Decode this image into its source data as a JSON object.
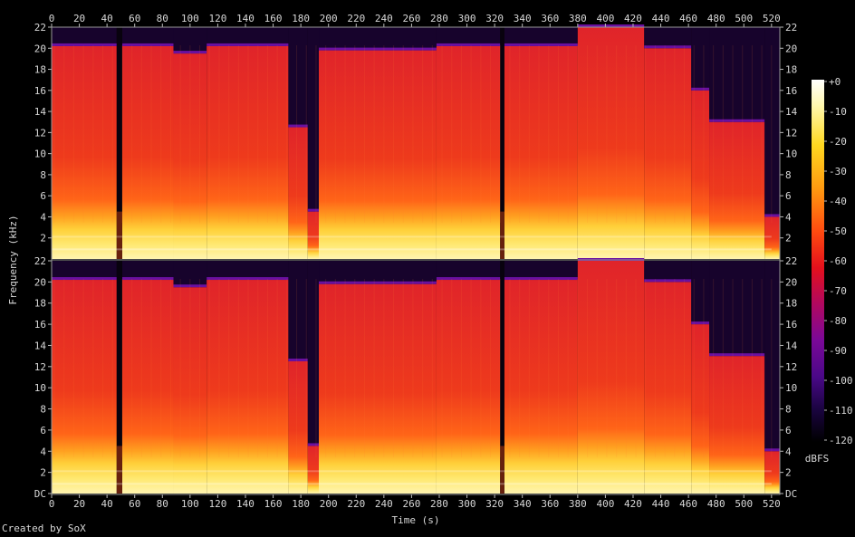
{
  "chart_data": {
    "type": "heatmap",
    "xlabel": "Time (s)",
    "ylabel": "Frequency (kHz)",
    "x_ticks": [
      0,
      20,
      40,
      60,
      80,
      100,
      120,
      140,
      160,
      180,
      200,
      220,
      240,
      260,
      280,
      300,
      320,
      340,
      360,
      380,
      400,
      420,
      440,
      460,
      480,
      500,
      520
    ],
    "xlim": [
      0,
      526
    ],
    "ylim": [
      0,
      22
    ],
    "channels": [
      {
        "y_tick_labels": [
          "22",
          "20",
          "18",
          "16",
          "14",
          "12",
          "10",
          "8",
          "6",
          "4",
          "2"
        ]
      },
      {
        "y_tick_labels": [
          "22",
          "20",
          "18",
          "16",
          "14",
          "12",
          "10",
          "8",
          "6",
          "4",
          "2",
          "DC"
        ]
      }
    ],
    "colorbar": {
      "label": "dBFS",
      "tick_labels": [
        "+0",
        "-10",
        "-20",
        "-30",
        "-40",
        "-50",
        "-60",
        "-70",
        "-80",
        "-90",
        "-100",
        "-110",
        "-120"
      ],
      "range": [
        -120,
        0
      ]
    },
    "silence_gaps_seconds": [
      [
        47,
        51
      ],
      [
        324,
        327
      ]
    ],
    "segments": [
      {
        "start": 0,
        "end": 47,
        "cutoff_khz": 20.2
      },
      {
        "start": 51,
        "end": 88,
        "cutoff_khz": 20.2
      },
      {
        "start": 88,
        "end": 112,
        "cutoff_khz": 19.5
      },
      {
        "start": 112,
        "end": 171,
        "cutoff_khz": 20.2
      },
      {
        "start": 171,
        "end": 185,
        "cutoff_khz": 12.5
      },
      {
        "start": 185,
        "end": 193,
        "cutoff_khz": 4.5
      },
      {
        "start": 193,
        "end": 278,
        "cutoff_khz": 19.8
      },
      {
        "start": 278,
        "end": 324,
        "cutoff_khz": 20.2
      },
      {
        "start": 327,
        "end": 380,
        "cutoff_khz": 20.2
      },
      {
        "start": 380,
        "end": 428,
        "cutoff_khz": 22
      },
      {
        "start": 428,
        "end": 462,
        "cutoff_khz": 20
      },
      {
        "start": 462,
        "end": 475,
        "cutoff_khz": 16
      },
      {
        "start": 475,
        "end": 515,
        "cutoff_khz": 13
      },
      {
        "start": 515,
        "end": 526,
        "cutoff_khz": 4
      }
    ]
  },
  "footer": "Created by SoX"
}
